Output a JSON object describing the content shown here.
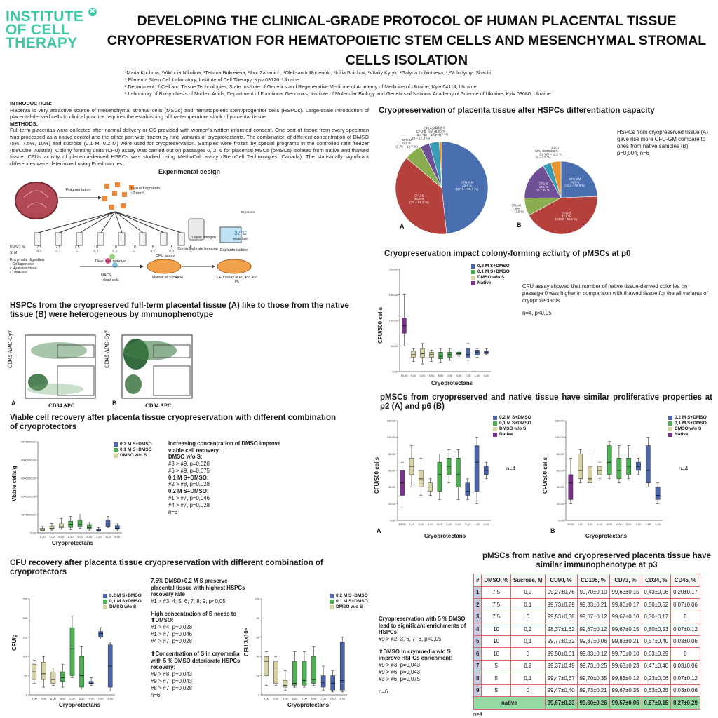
{
  "logo": {
    "line1": "INSTITUTE",
    "line2": "OF CELL",
    "line3": "THERAPY",
    "mark": "✕"
  },
  "title": "DEVELOPING THE CLINICAL-GRADE PROTOCOL OF HUMAN PLACENTAL TISSUE CRYOPRESERVATION FOR HEMATOPOIETIC STEM CELLS AND MESENCHYMAL STROMAL CELLS ISOLATION",
  "authors": {
    "names": "¹Maria Kuchma, ¹Viktoriia Nikulina, ¹Tetiana Bukreieva, ¹Ihor Zahanich, ¹Oleksandr Rudenok , ¹Iuliia Boichuk, ¹Vitaliy Kyryk, ¹Galyna Lobintseva, ¹,³Volodymyr Shablii",
    "aff1": "¹ Placenta Stem Cell Laboratory, Institute of Cell Therapy, Kyiv 03126, Ukraine",
    "aff2": "² Department of Cell and Tissue Technologies, State Institute of Genetics and Regenerative Medicine of Academy of Medicine of Ukraine, Kyiv 04114, Ukraine",
    "aff3": "³ Laboratory of Biosynthesis of Nucleic Acids, Department of Functional Genomics, Institute of Molecular Biology and Genetics of National Academy of Science of Ukraine, Kyiv 03680, Ukraine"
  },
  "intro": {
    "heading": "INTRODUCTION:",
    "text": "Placenta is very attractive source of mesenchymal stromal cells (MSCs) and hematopoietic stem/progenitor cells (HSPCs). Large-scale introduction of placental-derived cells to clinical practice requires the establishing of low-temperature stock of placental tissue.",
    "methods_heading": "METHODS:",
    "methods_text": "Full-term placentas were collected after normal delivery or CS provided with women's written informed consent. One part of tissue from every specimen was processed as a native control and the other part was frozen by nine variants of cryoprotectants. The combination of different concentration of DMSO (5%, 7.5%, 10%) and sucrose (0.1 M, 0.2 M) were used for cryopreservation. Samples were frozen by special programs in the controlled rate freezer (IceCube, Austria). Colony forming units (CFU) assay was carried out on passages 0, 2, 6 for placental MSCs (pMSCs) isolated from native and thawed tissue. CFUs activity of placenta-derived HSPCs was studied using MethoCult assay (StemCell Technologies, Canada). The statistically significant differences were determined using Friedman test."
  },
  "design": {
    "title": "Experimental design",
    "fragmentation": "Fragmentation",
    "fragments": "Tissue fragments,",
    "fragments2": "~2 mm³",
    "dmso_label": "DMSO, %",
    "s_label": "S, M",
    "tubes": [
      "#1",
      "#2",
      "#3",
      "#4",
      "#5",
      "#6",
      "#7",
      "#8",
      "#9"
    ],
    "dmso_vals": [
      "7,5",
      "7,5",
      "7,5",
      "10",
      "10",
      "10",
      "5",
      "5",
      "5"
    ],
    "s_vals": [
      "0,2",
      "0,1",
      "–",
      "0,2",
      "0,1",
      "–",
      "0,2",
      "0,1",
      "–"
    ],
    "ln": "Liquid Nitrogen",
    "crf": "Controlled-rate freezing",
    "water": "37°C",
    "water_sub": "Water bath",
    "cryo": "Cryostore",
    "enzymatic": "Enzymatic digestion:",
    "enz1": "Collagenase",
    "enz2": "Hyaluronidase",
    "enz3": "DNAase",
    "dead": "Dead cell removal",
    "macs": "MACS,",
    "dead_cells": "- dead cells",
    "cfu_assay": "CFU assay",
    "methocult": "MethoCult™ H4434",
    "explants": "Explants culture",
    "cfu_p": "CFU assay at P0, P2, and P6"
  },
  "flow": {
    "heading": "HSPCs from the cryopreserved full-term placental tissue (A) like to those from the native tissue (B) were heterogeneous by immunophenotype",
    "ylabel": "CD45 APC-Cy7",
    "xlabel": "CD34 APC",
    "a": "A",
    "b": "B",
    "xticks": [
      "0",
      "10²",
      "10³",
      "10⁴",
      "10⁵"
    ],
    "yticks": [
      "0",
      "10³",
      "10⁴",
      "10⁵"
    ],
    "gates": [
      "1",
      "2",
      "3",
      "4",
      "5"
    ]
  },
  "viable": {
    "heading": "Viable cell recovery after placenta tissue cryopreservation with different combination of cryoprotectors",
    "ylabel": "Viable cells/g",
    "xlabel": "Cryoprotectans",
    "notes": [
      {
        "t": "Increasing concentration of DMSO improve viable cell recovery.",
        "b": true
      },
      {
        "t": "DMSO w/o S:",
        "b": true
      },
      {
        "t": "#3 > #9, p=0,028",
        "b": false
      },
      {
        "t": "#6 > #9, p=0,075",
        "b": false
      },
      {
        "t": "0,1 M S+DMSO:",
        "b": true
      },
      {
        "t": "#2 > #8, p=0,028",
        "b": false
      },
      {
        "t": "0,2 M S+DMSO:",
        "b": true
      },
      {
        "t": "#1 > #7, p=0,046",
        "b": false
      },
      {
        "t": "#4 > #7, p=0,028",
        "b": false
      },
      {
        "t": "n=6",
        "b": false
      }
    ]
  },
  "legend": {
    "s02": "0,2 M S+DMSO",
    "s01": "0,1 M S+DMSO",
    "dmso": "DMSO w/o S",
    "native": "Native"
  },
  "colors": {
    "s02": "#4a63ad",
    "s01": "#4bb04f",
    "dmso": "#d8d3a3",
    "native": "#7b2f8f",
    "logo": "#3fc7a6",
    "border": "#d86a6a"
  },
  "cfu": {
    "heading": "CFU recovery after placenta tissue cryopreservation with different combination of cryoprotectors",
    "ylabel1": "CFU/g",
    "ylabel2": "CFU/3×10⁴",
    "xlabel": "Cryoprotectans",
    "notes1": [
      {
        "t": "7,5% DMSO+0,2 M S preserve placental tissue with highest HSPCs recovery rate",
        "b": true
      },
      {
        "t": "#1 > #3; 4; 5; 6; 7; 8; 9; p<0,05",
        "b": false
      },
      {
        "t": "",
        "b": false
      },
      {
        "t": "High concentration of S needs to ⬆DMSO:",
        "b": true
      },
      {
        "t": "#1 > #4, p=0,028",
        "b": false
      },
      {
        "t": "#1 > #7, p=0,046",
        "b": false
      },
      {
        "t": "#4 > #7, p=0,028",
        "b": false
      },
      {
        "t": "",
        "b": false
      },
      {
        "t": "⬆Concentration of S in cryomedia with 5 % DMSO deteriorate HSPCs recovery:",
        "b": true
      },
      {
        "t": "#9 > #8, p=0,043",
        "b": false
      },
      {
        "t": "#9 > #7, p=0,043",
        "b": false
      },
      {
        "t": "#8 > #7, p=0,028",
        "b": false
      },
      {
        "t": "n=6",
        "b": false
      }
    ],
    "notes2": [
      {
        "t": "Cryopreservation with 5 % DMSO lead to significant enrichments of HSPCs:",
        "b": true
      },
      {
        "t": "#9 > #2, 3, 6, 7, 8, p<0,05",
        "b": false
      },
      {
        "t": "",
        "b": false
      },
      {
        "t": "⬆DMSO in cryomedia w/o S improve HSPCs enrichment:",
        "b": true
      },
      {
        "t": "#9 > #3, p=0,043",
        "b": false
      },
      {
        "t": "#9 > #6, p=0,043",
        "b": false
      },
      {
        "t": "#3 > #6, p=0,075",
        "b": false
      },
      {
        "t": "",
        "b": false
      },
      {
        "t": "n=6",
        "b": false
      }
    ]
  },
  "pie": {
    "heading": "Cryopreservation of placenta tissue alter HSPCs differentiation capacity",
    "note": "HSPCs from cryopreserved tissue (A) gave rise more CFU-GM compare to ones from native samples (B)",
    "note_p": "p=0,004, n=6",
    "a": "A",
    "b": "B"
  },
  "p0": {
    "heading": "Cryopreservation impact colony-forming activity of pMSCs at p0",
    "ylabel": "CFU/500 cells",
    "xlabel": "Cryoprotectans",
    "note": "CFU assay showed that number of native tissue-derived colonies on passage 0 was higher in comparison with thawed tissue for the all variants of cryoprotectants",
    "note_n": "n=4, p<0,05"
  },
  "p26": {
    "heading": "pMSCs from cryopreserved and native tissue have similar proliferative properties at p2 (A) and p6 (B)",
    "ylabel": "CFU/500 cells",
    "xlabel": "Cryoprotectans",
    "n": "n=4",
    "a": "A",
    "b": "B"
  },
  "table": {
    "heading": "pMSCs from native and cryopreserved placenta tissue have similar immunophenotype at p3",
    "headers": [
      "#",
      "DMSO, %",
      "Sucrose, M",
      "CD90, %",
      "CD105, %",
      "CD73, %",
      "CD34, %",
      "CD45, %"
    ],
    "rows": [
      [
        "1",
        "7,5",
        "0,2",
        "99,27±0,76",
        "99,70±0,10",
        "99,63±0,15",
        "0,43±0,06",
        "0,20±0,17"
      ],
      [
        "2",
        "7,5",
        "0,1",
        "99,73±0,29",
        "99,83±0,21",
        "99,80±0,17",
        "0,50±0,52",
        "0,07±0,06"
      ],
      [
        "3",
        "7,5",
        "0",
        "99,53±0,38",
        "99,67±0,12",
        "99,67±0,10",
        "0,30±0,17",
        "0"
      ],
      [
        "4",
        "10",
        "0,2",
        "98,37±1,62",
        "99,67±0,12",
        "99,67±0,15",
        "0,80±0,53",
        "0,07±0,12"
      ],
      [
        "5",
        "10",
        "0,1",
        "99,77±0,32",
        "99,87±0,06",
        "99,83±0,21",
        "0,57±0,40",
        "0,03±0,06"
      ],
      [
        "6",
        "10",
        "0",
        "99,50±0,61",
        "99,83±0,12",
        "99,70±0,10",
        "0,63±0,29",
        "0"
      ],
      [
        "7",
        "5",
        "0,2",
        "99,37±0,49",
        "99,73±0,25",
        "99,63±0,23",
        "0,47±0,40",
        "0,03±0,06"
      ],
      [
        "8",
        "5",
        "0,1",
        "99,47±0,67",
        "99,70±0,35",
        "99,83±0,12",
        "0,23±0,06",
        "0,07±0,12"
      ],
      [
        "9",
        "5",
        "0",
        "99,47±0,40",
        "99,73±0,21",
        "99,67±0,35",
        "0,63±0,25",
        "0,03±0,06"
      ]
    ],
    "native": [
      "native",
      "99,67±0,23",
      "99,60±0,26",
      "99,57±0,06",
      "0,57±0,15",
      "0,27±0,29"
    ],
    "n": "n=4"
  },
  "chart_data": [
    {
      "type": "pie",
      "title": "A",
      "categories": [
        "CFU-GM",
        "CFU-B",
        "CFU-M",
        "CFU-E",
        "CFU-GMME",
        "CFU-G"
      ],
      "values": [
        49.6,
        38.9,
        6.3,
        3.4,
        3.6,
        0.86
      ],
      "labels": [
        "CFU-GM\n49,6 %\n(37,1 – 69,7 %)",
        "CFU-B\n38,9 %\n(18 – 51,4 %)",
        "CFU-M\n6,3 %\n(2,78 – 12,7 %)",
        "CFU-E\n3,4 %\n(0 – 17,8 %)",
        "CFU-GMME\n3,6 %\n(0 – 11,1 %)",
        "CFU-G\n0,86 %\n(0 – 2,1 %)"
      ],
      "colors": [
        "#4a6fb0",
        "#b5413c",
        "#8aad4f",
        "#6f4f96",
        "#3a9bb5",
        "#e7952e"
      ]
    },
    {
      "type": "pie",
      "title": "B",
      "categories": [
        "CFU-GM",
        "CFU-B",
        "CFU-M",
        "CFU-E",
        "CFU-GMME",
        "CFU-G"
      ],
      "values": [
        24.5,
        42.6,
        7.9,
        17.1,
        3.6,
        4.5
      ],
      "labels": [
        "CFU-GM\n24,5 %\n(12,2 – 36,9 %)",
        "CFU-B\n42,6 %\n(19,56 – 50,5 %)",
        "CFU-M\n7,9 %\n(0 – 13,5 %)",
        "CFU-E\n17,1 %\n(0 – 40 %)",
        "CFU-GMME\n3,6 %\n(0 – 2,5 %)",
        "CFU-G\n4,5 %\n(0 – 18,2 %)"
      ],
      "colors": [
        "#4a6fb0",
        "#b5413c",
        "#8aad4f",
        "#6f4f96",
        "#3a9bb5",
        "#e7952e"
      ]
    },
    {
      "type": "box",
      "title": "Viable cells/g",
      "x": [
        "9,00",
        "3,00",
        "6,00",
        "8,00",
        "2,00",
        "5,00",
        "7,00",
        "1,00",
        "4,00"
      ],
      "ylim": [
        0,
        5000000
      ],
      "yticks": [
        "0,00",
        "1000000,00",
        "2000000,00",
        "3000000,00",
        "4000000,00",
        "5000000,00"
      ],
      "groups": [
        "dmso",
        "dmso",
        "dmso",
        "s01",
        "s01",
        "s01",
        "s02",
        "s02",
        "s02"
      ],
      "q1": [
        100000,
        200000,
        280000,
        300000,
        330000,
        230000,
        100000,
        350000,
        200000
      ],
      "median": [
        150000,
        240000,
        340000,
        450000,
        460000,
        300000,
        150000,
        480000,
        250000
      ],
      "q3": [
        250000,
        380000,
        500000,
        650000,
        700000,
        420000,
        200000,
        700000,
        400000
      ],
      "min": [
        100000,
        150000,
        200000,
        180000,
        250000,
        150000,
        80000,
        300000,
        150000
      ],
      "max": [
        350000,
        520000,
        800000,
        900000,
        1000000,
        600000,
        300000,
        900000,
        500000
      ]
    },
    {
      "type": "box",
      "title": "CFU/g",
      "x": [
        "9,00",
        "3,00",
        "6,00",
        "8,00",
        "2,00",
        "5,00",
        "7,00",
        "1,00",
        "4,00"
      ],
      "ylim": [
        0,
        250
      ],
      "yticks": [
        "0",
        "50",
        "100",
        "150",
        "200",
        "250"
      ],
      "groups": [
        "dmso",
        "dmso",
        "dmso",
        "s01",
        "s01",
        "s01",
        "s02",
        "s02",
        "s02"
      ],
      "q1": [
        40,
        40,
        30,
        35,
        50,
        20,
        30,
        150,
        20
      ],
      "median": [
        60,
        55,
        40,
        45,
        120,
        50,
        30,
        160,
        75
      ],
      "q3": [
        80,
        85,
        60,
        60,
        175,
        100,
        35,
        165,
        130
      ],
      "min": [
        30,
        20,
        25,
        20,
        45,
        15,
        25,
        145,
        10
      ],
      "max": [
        90,
        100,
        70,
        80,
        205,
        125,
        45,
        175,
        135
      ]
    },
    {
      "type": "box",
      "title": "CFU/3×10⁴",
      "x": [
        "9,00",
        "3,00",
        "6,00",
        "8,00",
        "2,00",
        "5,00",
        "7,00",
        "1,00",
        "4,00"
      ],
      "ylim": [
        0,
        100
      ],
      "yticks": [
        "0",
        "20",
        "40",
        "60",
        "80",
        "100"
      ],
      "groups": [
        "dmso",
        "dmso",
        "dmso",
        "s01",
        "s01",
        "s01",
        "s02",
        "s02",
        "s02"
      ],
      "q1": [
        20,
        12,
        8,
        10,
        10,
        12,
        8,
        5,
        5
      ],
      "median": [
        35,
        28,
        10,
        12,
        15,
        16,
        13,
        12,
        15
      ],
      "q3": [
        40,
        35,
        15,
        35,
        35,
        40,
        20,
        20,
        55
      ],
      "min": [
        10,
        10,
        5,
        8,
        8,
        10,
        5,
        3,
        3
      ],
      "max": [
        45,
        40,
        25,
        45,
        45,
        50,
        30,
        25,
        60
      ]
    },
    {
      "type": "box",
      "title": "p0",
      "x": [
        "10,00",
        "9,00",
        "3,00",
        "6,00",
        "8,00",
        "2,00",
        "5,00",
        "7,00",
        "1,00",
        "4,00"
      ],
      "ylim": [
        0,
        200
      ],
      "yticks": [
        "0,00",
        "50,00",
        "100,00",
        "150,00",
        "200,00"
      ],
      "groups": [
        "native",
        "dmso",
        "dmso",
        "dmso",
        "s01",
        "s01",
        "s01",
        "s02",
        "s02",
        "s02"
      ],
      "q1": [
        75,
        28,
        28,
        28,
        25,
        28,
        33,
        28,
        32,
        35
      ],
      "median": [
        90,
        33,
        35,
        33,
        30,
        33,
        35,
        33,
        38,
        38
      ],
      "q3": [
        105,
        40,
        45,
        38,
        38,
        38,
        38,
        45,
        42,
        40
      ],
      "min": [
        50,
        20,
        15,
        20,
        18,
        22,
        30,
        22,
        28,
        33
      ],
      "max": [
        150,
        45,
        55,
        42,
        45,
        45,
        40,
        55,
        45,
        45
      ]
    },
    {
      "type": "box",
      "title": "p2 (A)",
      "x": [
        "10,00",
        "9,00",
        "3,00",
        "6,00",
        "8,00",
        "2,00",
        "5,00",
        "7,00",
        "1,00",
        "4,00"
      ],
      "ylim": [
        0,
        120
      ],
      "yticks": [
        "0,00",
        "20,00",
        "40,00",
        "60,00",
        "80,00",
        "100,00",
        "120,00"
      ],
      "groups": [
        "native",
        "dmso",
        "dmso",
        "dmso",
        "s01",
        "s01",
        "s01",
        "s02",
        "s02",
        "s02"
      ],
      "q1": [
        30,
        55,
        40,
        35,
        35,
        55,
        40,
        30,
        35,
        55
      ],
      "median": [
        45,
        65,
        50,
        40,
        55,
        65,
        55,
        35,
        70,
        60
      ],
      "q3": [
        60,
        75,
        60,
        45,
        70,
        75,
        75,
        45,
        90,
        65
      ],
      "min": [
        15,
        40,
        30,
        30,
        25,
        45,
        25,
        25,
        20,
        50
      ],
      "max": [
        70,
        90,
        75,
        50,
        80,
        85,
        85,
        50,
        100,
        70
      ]
    },
    {
      "type": "box",
      "title": "p6 (B)",
      "x": [
        "10,00",
        "9,00",
        "3,00",
        "6,00",
        "8,00",
        "2,00",
        "5,00",
        "7,00",
        "1,00",
        "4,00"
      ],
      "ylim": [
        0,
        120
      ],
      "yticks": [
        "0,00",
        "20,00",
        "40,00",
        "60,00",
        "80,00",
        "100,00",
        "120,00"
      ],
      "groups": [
        "native",
        "dmso",
        "dmso",
        "dmso",
        "s01",
        "s01",
        "s01",
        "s02",
        "s02",
        "s02"
      ],
      "q1": [
        25,
        50,
        45,
        55,
        55,
        50,
        55,
        60,
        45,
        25
      ],
      "median": [
        45,
        60,
        50,
        60,
        70,
        60,
        65,
        65,
        60,
        30
      ],
      "q3": [
        55,
        80,
        65,
        65,
        90,
        75,
        75,
        70,
        90,
        40
      ],
      "min": [
        20,
        45,
        40,
        50,
        50,
        45,
        50,
        55,
        40,
        20
      ],
      "max": [
        75,
        85,
        80,
        70,
        95,
        90,
        90,
        75,
        100,
        45
      ]
    }
  ]
}
